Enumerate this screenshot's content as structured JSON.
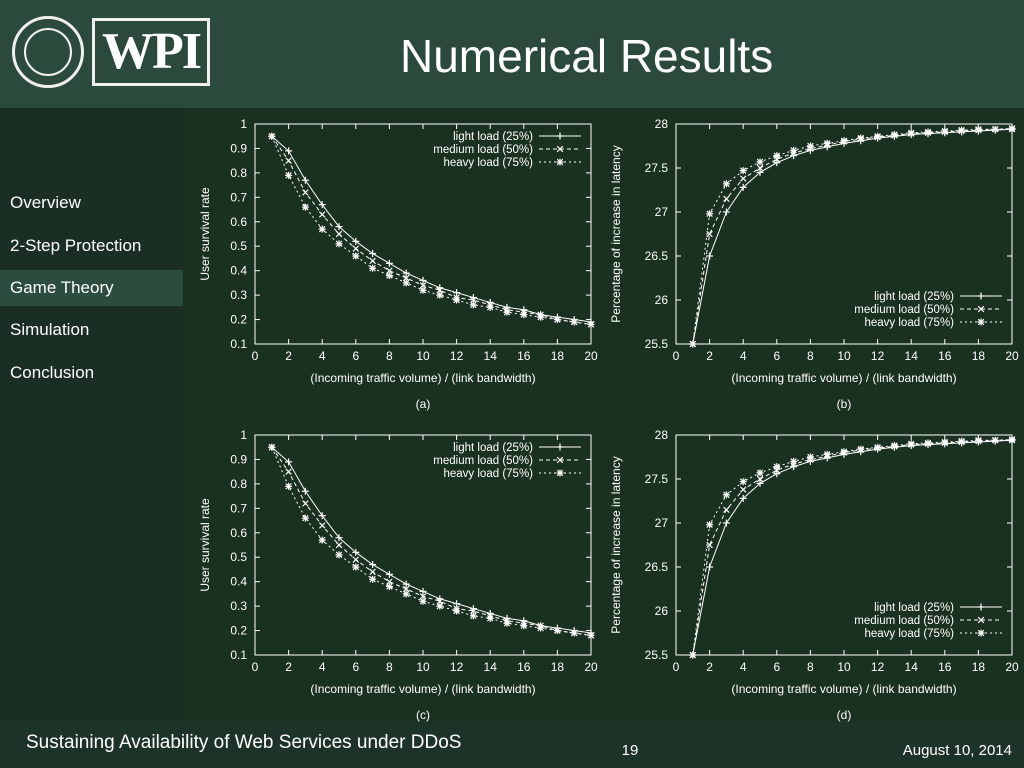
{
  "header": {
    "logo_text": "WPI",
    "title": "Numerical Results"
  },
  "sidebar": {
    "items": [
      {
        "label": "Overview",
        "active": false
      },
      {
        "label": "2-Step Protection",
        "active": false
      },
      {
        "label": "Game Theory",
        "active": true
      },
      {
        "label": "Simulation",
        "active": false
      },
      {
        "label": "Conclusion",
        "active": false
      }
    ]
  },
  "footer": {
    "left": "Sustaining Availability of Web Services under DDoS",
    "page": "19",
    "date": "August 10, 2014"
  },
  "chart_data": [
    {
      "type": "line",
      "caption": "(a)",
      "xlabel": "(Incoming traffic volume) / (link bandwidth)",
      "ylabel": "User survival rate",
      "xlim": [
        0,
        20
      ],
      "ylim": [
        0.1,
        1
      ],
      "xticks": [
        0,
        2,
        4,
        6,
        8,
        10,
        12,
        14,
        16,
        18,
        20
      ],
      "yticks": [
        0.1,
        0.2,
        0.3,
        0.4,
        0.5,
        0.6,
        0.7,
        0.8,
        0.9,
        1
      ],
      "legend": "top-right",
      "x": [
        1,
        2,
        3,
        4,
        5,
        6,
        7,
        8,
        9,
        10,
        11,
        12,
        13,
        14,
        15,
        16,
        17,
        18,
        19,
        20
      ],
      "series": [
        {
          "name": "light load (25%)",
          "marker": "plus",
          "values": [
            0.95,
            0.89,
            0.77,
            0.67,
            0.58,
            0.52,
            0.47,
            0.43,
            0.39,
            0.36,
            0.33,
            0.31,
            0.29,
            0.27,
            0.25,
            0.24,
            0.22,
            0.21,
            0.2,
            0.19
          ]
        },
        {
          "name": "medium load (50%)",
          "marker": "cross",
          "values": [
            0.95,
            0.85,
            0.72,
            0.63,
            0.55,
            0.49,
            0.44,
            0.4,
            0.37,
            0.34,
            0.32,
            0.29,
            0.28,
            0.26,
            0.24,
            0.23,
            0.22,
            0.2,
            0.19,
            0.18
          ]
        },
        {
          "name": "heavy load (75%)",
          "marker": "star",
          "values": [
            0.95,
            0.79,
            0.66,
            0.57,
            0.51,
            0.46,
            0.41,
            0.38,
            0.35,
            0.32,
            0.3,
            0.28,
            0.26,
            0.25,
            0.23,
            0.22,
            0.21,
            0.2,
            0.19,
            0.18
          ]
        }
      ]
    },
    {
      "type": "line",
      "caption": "(b)",
      "xlabel": "(Incoming traffic volume) / (link bandwidth)",
      "ylabel": "Percentage of increase in latency",
      "xlim": [
        0,
        20
      ],
      "ylim": [
        25.5,
        28
      ],
      "xticks": [
        0,
        2,
        4,
        6,
        8,
        10,
        12,
        14,
        16,
        18,
        20
      ],
      "yticks": [
        25.5,
        26,
        26.5,
        27,
        27.5,
        28
      ],
      "legend": "bottom-right",
      "x": [
        1,
        2,
        3,
        4,
        5,
        6,
        7,
        8,
        9,
        10,
        11,
        12,
        13,
        14,
        15,
        16,
        17,
        18,
        19,
        20
      ],
      "series": [
        {
          "name": "light load (25%)",
          "marker": "plus",
          "values": [
            25.5,
            26.5,
            27.0,
            27.28,
            27.45,
            27.56,
            27.64,
            27.7,
            27.74,
            27.78,
            27.81,
            27.84,
            27.86,
            27.88,
            27.89,
            27.9,
            27.91,
            27.92,
            27.93,
            27.94
          ]
        },
        {
          "name": "medium load (50%)",
          "marker": "cross",
          "values": [
            25.5,
            26.75,
            27.15,
            27.38,
            27.5,
            27.6,
            27.67,
            27.72,
            27.76,
            27.8,
            27.83,
            27.85,
            27.87,
            27.89,
            27.9,
            27.91,
            27.92,
            27.93,
            27.94,
            27.94
          ]
        },
        {
          "name": "heavy load (75%)",
          "marker": "star",
          "values": [
            25.5,
            26.98,
            27.32,
            27.47,
            27.57,
            27.64,
            27.7,
            27.75,
            27.78,
            27.81,
            27.84,
            27.86,
            27.88,
            27.9,
            27.91,
            27.92,
            27.93,
            27.94,
            27.94,
            27.95
          ]
        }
      ]
    },
    {
      "type": "line",
      "caption": "(c)",
      "xlabel": "(Incoming traffic volume) / (link bandwidth)",
      "ylabel": "User survival rate",
      "xlim": [
        0,
        20
      ],
      "ylim": [
        0.1,
        1
      ],
      "xticks": [
        0,
        2,
        4,
        6,
        8,
        10,
        12,
        14,
        16,
        18,
        20
      ],
      "yticks": [
        0.1,
        0.2,
        0.3,
        0.4,
        0.5,
        0.6,
        0.7,
        0.8,
        0.9,
        1
      ],
      "legend": "top-right",
      "x": [
        1,
        2,
        3,
        4,
        5,
        6,
        7,
        8,
        9,
        10,
        11,
        12,
        13,
        14,
        15,
        16,
        17,
        18,
        19,
        20
      ],
      "series": [
        {
          "name": "light load (25%)",
          "marker": "plus",
          "values": [
            0.95,
            0.89,
            0.77,
            0.67,
            0.58,
            0.52,
            0.47,
            0.43,
            0.39,
            0.36,
            0.33,
            0.31,
            0.29,
            0.27,
            0.25,
            0.24,
            0.22,
            0.21,
            0.2,
            0.19
          ]
        },
        {
          "name": "medium load (50%)",
          "marker": "cross",
          "values": [
            0.95,
            0.85,
            0.72,
            0.63,
            0.55,
            0.49,
            0.44,
            0.4,
            0.37,
            0.34,
            0.32,
            0.29,
            0.28,
            0.26,
            0.24,
            0.23,
            0.22,
            0.2,
            0.19,
            0.18
          ]
        },
        {
          "name": "heavy load (75%)",
          "marker": "star",
          "values": [
            0.95,
            0.79,
            0.66,
            0.57,
            0.51,
            0.46,
            0.41,
            0.38,
            0.35,
            0.32,
            0.3,
            0.28,
            0.26,
            0.25,
            0.23,
            0.22,
            0.21,
            0.2,
            0.19,
            0.18
          ]
        }
      ]
    },
    {
      "type": "line",
      "caption": "(d)",
      "xlabel": "(Incoming traffic volume) / (link bandwidth)",
      "ylabel": "Percentage of increase in latency",
      "xlim": [
        0,
        20
      ],
      "ylim": [
        25.5,
        28
      ],
      "xticks": [
        0,
        2,
        4,
        6,
        8,
        10,
        12,
        14,
        16,
        18,
        20
      ],
      "yticks": [
        25.5,
        26,
        26.5,
        27,
        27.5,
        28
      ],
      "legend": "bottom-right",
      "x": [
        1,
        2,
        3,
        4,
        5,
        6,
        7,
        8,
        9,
        10,
        11,
        12,
        13,
        14,
        15,
        16,
        17,
        18,
        19,
        20
      ],
      "series": [
        {
          "name": "light load (25%)",
          "marker": "plus",
          "values": [
            25.5,
            26.5,
            27.0,
            27.28,
            27.45,
            27.56,
            27.64,
            27.7,
            27.74,
            27.78,
            27.81,
            27.84,
            27.86,
            27.88,
            27.89,
            27.9,
            27.91,
            27.92,
            27.93,
            27.94
          ]
        },
        {
          "name": "medium load (50%)",
          "marker": "cross",
          "values": [
            25.5,
            26.75,
            27.15,
            27.38,
            27.5,
            27.6,
            27.67,
            27.72,
            27.76,
            27.8,
            27.83,
            27.85,
            27.87,
            27.89,
            27.9,
            27.91,
            27.92,
            27.93,
            27.94,
            27.94
          ]
        },
        {
          "name": "heavy load (75%)",
          "marker": "star",
          "values": [
            25.5,
            26.98,
            27.32,
            27.47,
            27.57,
            27.64,
            27.7,
            27.75,
            27.78,
            27.81,
            27.84,
            27.86,
            27.88,
            27.9,
            27.91,
            27.92,
            27.93,
            27.94,
            27.94,
            27.95
          ]
        }
      ]
    }
  ]
}
